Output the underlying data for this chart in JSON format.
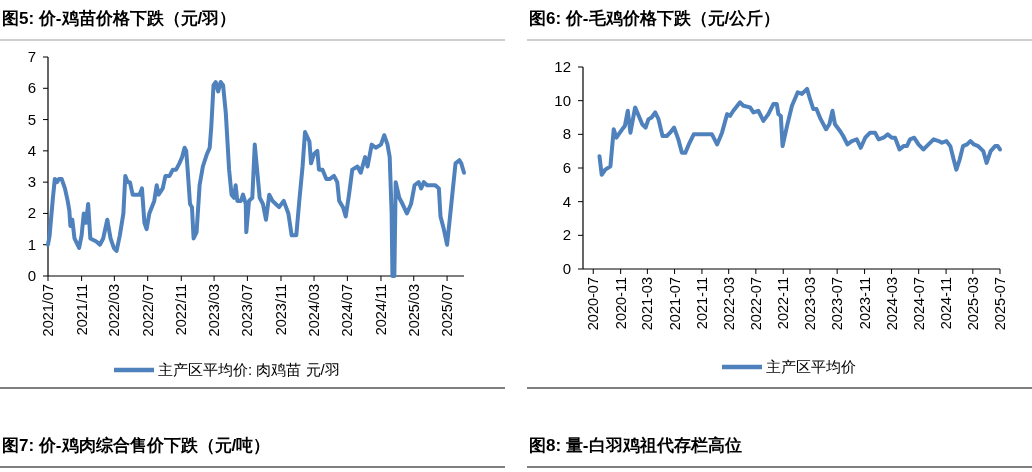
{
  "chart_data": [
    {
      "type": "line",
      "title": "图5:  价-鸡苗价格下跌（元/羽）",
      "annotations": [
        "图7:  价-鸡肉综合售价下跌（元/吨）"
      ],
      "legend": "bottom",
      "xlim": [
        "2021-07-01",
        "2025-09-01"
      ],
      "ylim": [
        0,
        7
      ],
      "yticks": [
        0,
        1,
        2,
        3,
        4,
        5,
        6,
        7
      ],
      "xticks": [
        {
          "value": "2021-07",
          "label": "2021/07"
        },
        {
          "value": "2021-11",
          "label": "2021/11"
        },
        {
          "value": "2022-03",
          "label": "2022/03"
        },
        {
          "value": "2022-07",
          "label": "2022/07"
        },
        {
          "value": "2022-11",
          "label": "2022/11"
        },
        {
          "value": "2023-03",
          "label": "2023/03"
        },
        {
          "value": "2023-07",
          "label": "2023/07"
        },
        {
          "value": "2023-11",
          "label": "2023/11"
        },
        {
          "value": "2024-03",
          "label": "2024/03"
        },
        {
          "value": "2024-07",
          "label": "2024/07"
        },
        {
          "value": "2024-11",
          "label": "2024/11"
        },
        {
          "value": "2025-03",
          "label": "2025/03"
        },
        {
          "value": "2025-07",
          "label": "2025/07"
        }
      ],
      "x": [
        "2021-07-01",
        "2021-07-07",
        "2021-07-14",
        "2021-07-19",
        "2021-07-26",
        "2021-08-03",
        "2021-08-10",
        "2021-08-20",
        "2021-09-01",
        "2021-09-11",
        "2021-09-17",
        "2021-09-21",
        "2021-09-28",
        "2021-10-06",
        "2021-10-23",
        "2021-11-01",
        "2021-11-09",
        "2021-11-17",
        "2021-11-25",
        "2021-12-03",
        "2021-12-25",
        "2022-01-07",
        "2022-01-19",
        "2022-02-03",
        "2022-02-15",
        "2022-02-27",
        "2022-03-09",
        "2022-03-21",
        "2022-04-03",
        "2022-04-10",
        "2022-04-19",
        "2022-04-27",
        "2022-05-07",
        "2022-06-01",
        "2022-06-10",
        "2022-06-19",
        "2022-06-27",
        "2022-07-07",
        "2022-07-16",
        "2022-07-25",
        "2022-08-03",
        "2022-08-10",
        "2022-08-25",
        "2022-09-04",
        "2022-09-19",
        "2022-10-01",
        "2022-10-13",
        "2022-10-25",
        "2022-11-04",
        "2022-11-13",
        "2022-11-19",
        "2022-11-25",
        "2022-12-03",
        "2022-12-10",
        "2022-12-16",
        "2022-12-27",
        "2023-01-07",
        "2023-01-19",
        "2023-02-03",
        "2023-02-13",
        "2023-02-19",
        "2023-02-27",
        "2023-03-07",
        "2023-03-16",
        "2023-03-25",
        "2023-04-03",
        "2023-04-13",
        "2023-04-25",
        "2023-05-04",
        "2023-05-13",
        "2023-05-19",
        "2023-05-25",
        "2023-06-07",
        "2023-06-15",
        "2023-06-25",
        "2023-06-27",
        "2023-07-07",
        "2023-07-19",
        "2023-07-28",
        "2023-08-15",
        "2023-08-27",
        "2023-09-07",
        "2023-09-19",
        "2023-10-01",
        "2023-10-13",
        "2023-10-25",
        "2023-11-11",
        "2023-11-28",
        "2023-12-10",
        "2023-12-27",
        "2024-01-07",
        "2024-01-19",
        "2024-01-28",
        "2024-02-13",
        "2024-02-19",
        "2024-03-01",
        "2024-03-13",
        "2024-03-19",
        "2024-04-01",
        "2024-04-15",
        "2024-04-27",
        "2024-05-13",
        "2024-05-25",
        "2024-06-01",
        "2024-06-15",
        "2024-06-25",
        "2024-07-07",
        "2024-07-19",
        "2024-08-07",
        "2024-08-19",
        "2024-09-04",
        "2024-09-13",
        "2024-09-28",
        "2024-10-13",
        "2024-11-01",
        "2024-11-13",
        "2024-11-25",
        "2024-12-03",
        "2024-12-10",
        "2024-12-13",
        "2024-12-20",
        "2024-12-25",
        "2025-01-07",
        "2025-01-19",
        "2025-02-04",
        "2025-02-19",
        "2025-03-04",
        "2025-03-19",
        "2025-03-28",
        "2025-04-07",
        "2025-04-19",
        "2025-05-01",
        "2025-05-19",
        "2025-06-01",
        "2025-06-07",
        "2025-06-19",
        "2025-07-01",
        "2025-07-13",
        "2025-08-01",
        "2025-08-15",
        "2025-08-22",
        "2025-09-01"
      ],
      "series": [
        {
          "name": "主产区平均价: 肉鸡苗  元/羽",
          "color": "#4f81bd",
          "values": [
            1.0,
            1.3,
            2.0,
            2.5,
            3.1,
            3.0,
            3.1,
            3.1,
            2.8,
            2.4,
            2.1,
            1.6,
            1.8,
            1.2,
            0.9,
            1.3,
            2.0,
            1.7,
            2.3,
            1.2,
            1.1,
            1.0,
            1.2,
            1.8,
            1.2,
            0.9,
            0.8,
            1.3,
            2.0,
            3.2,
            3.0,
            3.0,
            2.6,
            2.6,
            2.8,
            1.7,
            1.5,
            2.0,
            2.2,
            2.4,
            2.9,
            2.6,
            2.8,
            3.2,
            3.2,
            3.4,
            3.4,
            3.6,
            3.8,
            4.1,
            4.0,
            3.3,
            2.3,
            2.2,
            1.2,
            1.4,
            2.9,
            3.5,
            3.9,
            4.1,
            4.8,
            6.1,
            6.2,
            5.9,
            6.2,
            6.1,
            5.2,
            3.4,
            2.6,
            2.5,
            2.9,
            2.4,
            2.4,
            2.6,
            2.3,
            1.4,
            2.4,
            2.5,
            4.2,
            2.5,
            2.3,
            1.8,
            2.6,
            2.4,
            2.3,
            2.2,
            2.4,
            2.0,
            1.3,
            1.3,
            2.4,
            3.5,
            4.6,
            4.3,
            3.6,
            3.9,
            4.0,
            3.4,
            3.4,
            3.1,
            3.1,
            3.2,
            3.0,
            2.4,
            2.2,
            1.9,
            2.6,
            3.4,
            3.5,
            3.3,
            3.8,
            3.5,
            4.2,
            4.1,
            4.2,
            4.5,
            4.2,
            3.8,
            2.0,
            0,
            0,
            3.0,
            2.5,
            2.3,
            2.0,
            2.3,
            2.9,
            3.0,
            2.8,
            3.0,
            2.9,
            2.9,
            2.9,
            2.8,
            1.9,
            1.5,
            1.0,
            2.0,
            3.6,
            3.7,
            3.6,
            3.3
          ]
        }
      ]
    },
    {
      "type": "line",
      "title": "图6:  价-毛鸡价格下跌（元/公斤）",
      "annotations": [
        "图8:  量-白羽鸡祖代存栏高位"
      ],
      "legend": "bottom",
      "xlim": [
        "2020-05-16",
        "2025-07-01"
      ],
      "ylim": [
        0,
        12
      ],
      "yticks": [
        0,
        2,
        4,
        6,
        8,
        10,
        12
      ],
      "xticks": [
        {
          "value": "2020-07",
          "label": "2020-07"
        },
        {
          "value": "2020-11",
          "label": "2020-11"
        },
        {
          "value": "2021-03",
          "label": "2021-03"
        },
        {
          "value": "2021-07",
          "label": "2021-07"
        },
        {
          "value": "2021-11",
          "label": "2021-11"
        },
        {
          "value": "2022-03",
          "label": "2022-03"
        },
        {
          "value": "2022-07",
          "label": "2022-07"
        },
        {
          "value": "2022-11",
          "label": "2022-11"
        },
        {
          "value": "2023-03",
          "label": "2023-03"
        },
        {
          "value": "2023-07",
          "label": "2023-07"
        },
        {
          "value": "2023-11",
          "label": "2023-11"
        },
        {
          "value": "2024-03",
          "label": "2024-03"
        },
        {
          "value": "2024-07",
          "label": "2024-07"
        },
        {
          "value": "2024-11",
          "label": "2024-11"
        },
        {
          "value": "2025-03",
          "label": "2025-03"
        },
        {
          "value": "2025-07",
          "label": "2025-07"
        }
      ],
      "x": [
        "2020-07-29",
        "2020-08-08",
        "2020-08-24",
        "2020-09-16",
        "2020-10-01",
        "2020-10-13",
        "2020-10-23",
        "2020-11-08",
        "2020-11-20",
        "2020-12-03",
        "2020-12-15",
        "2021-01-05",
        "2021-01-21",
        "2021-02-06",
        "2021-02-21",
        "2021-03-06",
        "2021-03-20",
        "2021-04-05",
        "2021-04-20",
        "2021-05-08",
        "2021-05-27",
        "2021-06-11",
        "2021-06-29",
        "2021-07-18",
        "2021-08-03",
        "2021-08-18",
        "2021-09-03",
        "2021-09-25",
        "2021-10-09",
        "2021-12-16",
        "2022-01-08",
        "2022-01-30",
        "2022-02-22",
        "2022-03-07",
        "2022-03-22",
        "2022-04-21",
        "2022-05-06",
        "2022-06-05",
        "2022-06-20",
        "2022-07-12",
        "2022-08-04",
        "2022-08-26",
        "2022-09-18",
        "2022-10-03",
        "2022-10-10",
        "2022-10-21",
        "2022-10-29",
        "2022-11-18",
        "2022-12-10",
        "2023-01-05",
        "2023-01-24",
        "2023-02-16",
        "2023-03-01",
        "2023-03-16",
        "2023-03-30",
        "2023-04-18",
        "2023-05-12",
        "2023-05-27",
        "2023-06-10",
        "2023-06-21",
        "2023-07-14",
        "2023-07-28",
        "2023-08-16",
        "2023-09-05",
        "2023-09-27",
        "2023-10-15",
        "2023-11-04",
        "2023-11-26",
        "2023-12-18",
        "2024-01-03",
        "2024-01-25",
        "2024-02-13",
        "2024-03-02",
        "2024-03-17",
        "2024-04-06",
        "2024-04-24",
        "2024-05-09",
        "2024-05-23",
        "2024-06-11",
        "2024-06-30",
        "2024-07-22",
        "2024-08-14",
        "2024-09-06",
        "2024-09-29",
        "2024-10-13",
        "2024-11-02",
        "2024-11-20",
        "2024-12-05",
        "2024-12-17",
        "2025-01-01",
        "2025-01-16",
        "2025-02-03",
        "2025-02-18",
        "2025-03-06",
        "2025-03-25",
        "2025-04-17",
        "2025-05-02",
        "2025-05-20",
        "2025-06-09",
        "2025-06-21",
        "2025-07-01"
      ],
      "series": [
        {
          "name": "主产区平均价",
          "color": "#4f81bd",
          "values": [
            6.7,
            5.6,
            5.9,
            6.1,
            8.3,
            7.8,
            8.0,
            8.3,
            8.5,
            9.4,
            8.1,
            9.6,
            9.1,
            8.6,
            8.4,
            8.9,
            9.0,
            9.3,
            8.9,
            7.9,
            7.9,
            8.1,
            8.4,
            7.7,
            6.9,
            6.9,
            7.4,
            8.0,
            8.0,
            8.0,
            7.4,
            8.1,
            9.2,
            9.1,
            9.4,
            9.9,
            9.7,
            9.6,
            9.3,
            9.4,
            8.8,
            9.2,
            9.8,
            9.8,
            9.2,
            9.1,
            7.3,
            8.5,
            9.7,
            10.5,
            10.4,
            10.7,
            10.1,
            9.5,
            9.5,
            8.9,
            8.3,
            8.6,
            9.4,
            8.6,
            8.2,
            7.9,
            7.4,
            7.6,
            7.7,
            7.2,
            7.8,
            8.1,
            8.1,
            7.7,
            7.8,
            8.0,
            7.8,
            7.8,
            7.1,
            7.3,
            7.3,
            7.7,
            7.8,
            7.4,
            7.1,
            7.4,
            7.7,
            7.6,
            7.5,
            7.6,
            7.3,
            6.5,
            5.9,
            6.5,
            7.3,
            7.4,
            7.6,
            7.4,
            7.3,
            7.0,
            6.3,
            7.0,
            7.3,
            7.3,
            7.1
          ]
        }
      ]
    }
  ]
}
